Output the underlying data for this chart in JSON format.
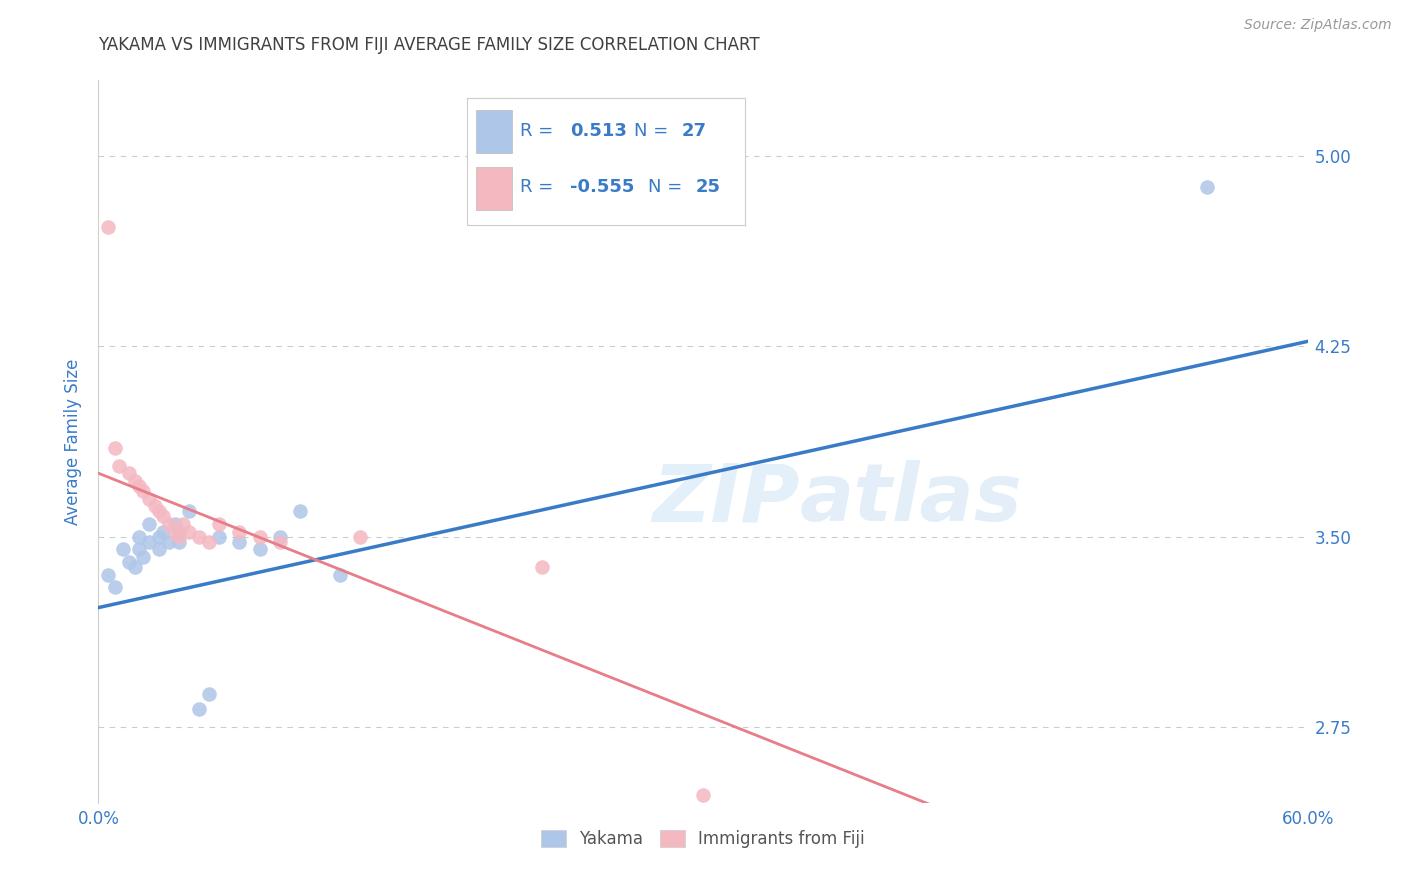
{
  "title": "YAKAMA VS IMMIGRANTS FROM FIJI AVERAGE FAMILY SIZE CORRELATION CHART",
  "source": "Source: ZipAtlas.com",
  "ylabel": "Average Family Size",
  "xlabel": "",
  "xlim": [
    0.0,
    0.6
  ],
  "ylim": [
    2.45,
    5.3
  ],
  "yticks": [
    2.75,
    3.5,
    4.25,
    5.0
  ],
  "xticks": [
    0.0,
    0.1,
    0.2,
    0.3,
    0.4,
    0.5,
    0.6
  ],
  "xtick_labels": [
    "0.0%",
    "",
    "",
    "",
    "",
    "",
    "60.0%"
  ],
  "ytick_labels": [
    "2.75",
    "3.50",
    "4.25",
    "5.00"
  ],
  "legend_r1": "R =   0.513   N = 27",
  "legend_r2": "R = -0.555   N = 25",
  "blue_scatter_x": [
    0.005,
    0.008,
    0.012,
    0.015,
    0.018,
    0.02,
    0.02,
    0.022,
    0.025,
    0.025,
    0.03,
    0.03,
    0.032,
    0.035,
    0.038,
    0.04,
    0.04,
    0.045,
    0.05,
    0.055,
    0.06,
    0.07,
    0.08,
    0.09,
    0.1,
    0.12,
    0.55
  ],
  "blue_scatter_y": [
    3.35,
    3.3,
    3.45,
    3.4,
    3.38,
    3.5,
    3.45,
    3.42,
    3.48,
    3.55,
    3.5,
    3.45,
    3.52,
    3.48,
    3.55,
    3.52,
    3.48,
    3.6,
    2.82,
    2.88,
    3.5,
    3.48,
    3.45,
    3.5,
    3.6,
    3.35,
    4.88
  ],
  "pink_scatter_x": [
    0.005,
    0.008,
    0.01,
    0.015,
    0.018,
    0.02,
    0.022,
    0.025,
    0.028,
    0.03,
    0.032,
    0.035,
    0.038,
    0.04,
    0.042,
    0.045,
    0.05,
    0.055,
    0.06,
    0.07,
    0.08,
    0.09,
    0.13,
    0.22,
    0.3
  ],
  "pink_scatter_y": [
    4.72,
    3.85,
    3.78,
    3.75,
    3.72,
    3.7,
    3.68,
    3.65,
    3.62,
    3.6,
    3.58,
    3.55,
    3.52,
    3.5,
    3.55,
    3.52,
    3.5,
    3.48,
    3.55,
    3.52,
    3.5,
    3.48,
    3.5,
    3.38,
    2.48
  ],
  "blue_line_x": [
    0.0,
    0.6
  ],
  "blue_line_y": [
    3.22,
    4.27
  ],
  "pink_line_x": [
    0.0,
    0.42
  ],
  "pink_line_y": [
    3.75,
    2.42
  ],
  "blue_dot_color": "#aec6e8",
  "pink_dot_color": "#f4b8c1",
  "blue_line_color": "#3a7bc8",
  "pink_line_color": "#e87d8a",
  "watermark_zip": "ZIP",
  "watermark_atlas": "atlas",
  "background_color": "#ffffff",
  "grid_color": "#cccccc",
  "title_color": "#404040",
  "axis_label_color": "#3a7bc8",
  "tick_color": "#3a7bc8",
  "legend_box_color": "#aec6e8",
  "legend_box2_color": "#f4b8c1"
}
